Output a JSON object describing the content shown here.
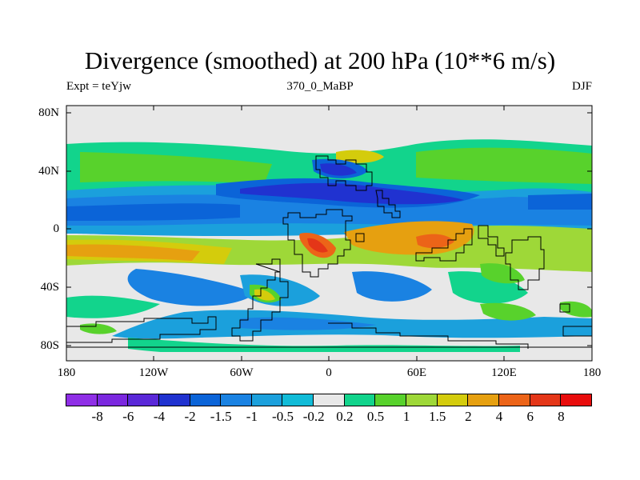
{
  "title": "Divergence (smoothed) at 200 hPa (10**6 m/s)",
  "subtitle_left": "Expt = teYjw",
  "subtitle_center": "370_0_MaBP",
  "subtitle_right": "DJF",
  "y_ticks": [
    "80N",
    "40N",
    "0",
    "40S",
    "80S"
  ],
  "x_ticks": [
    "180",
    "120W",
    "60W",
    "0",
    "60E",
    "120E",
    "180"
  ],
  "colorbar": {
    "colors": [
      "#8f2fe6",
      "#7b28df",
      "#5a28d8",
      "#2032d0",
      "#0b64d8",
      "#1a82e2",
      "#1ba0dc",
      "#12bcd8",
      "#e8e8e8",
      "#12d48c",
      "#58d22c",
      "#9ed838",
      "#d4cc0c",
      "#e6a010",
      "#ec6418",
      "#e43618",
      "#e80c0c"
    ],
    "labels": [
      "-8",
      "-6",
      "-4",
      "-2",
      "-1.5",
      "-1",
      "-0.5",
      "-0.2",
      "0.2",
      "0.5",
      "1",
      "1.5",
      "2",
      "4",
      "6",
      "8"
    ]
  }
}
